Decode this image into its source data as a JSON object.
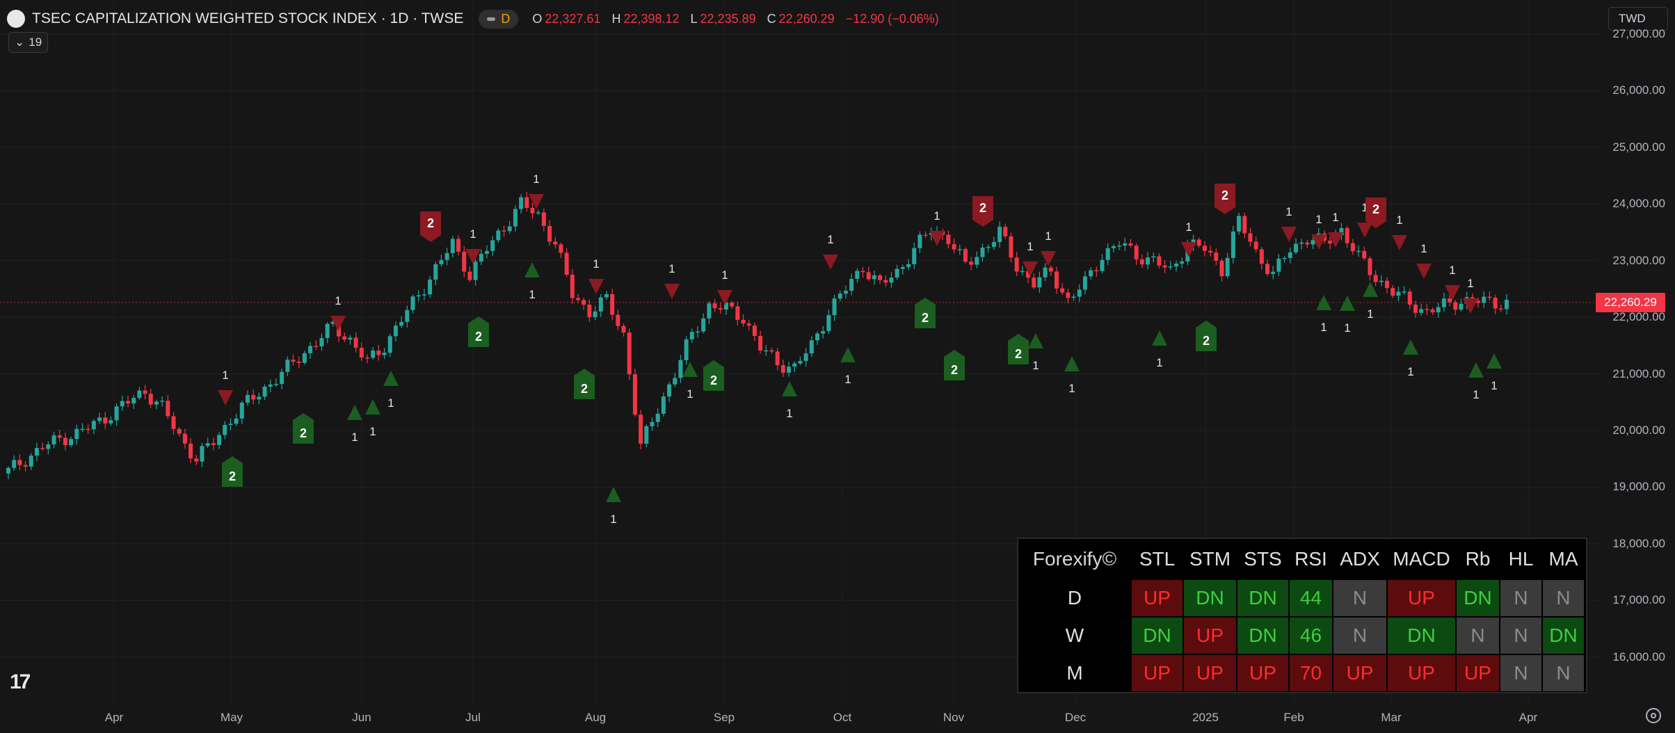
{
  "header": {
    "symbol_title": "TSEC CAPITALIZATION WEIGHTED STOCK INDEX · 1D · TWSE",
    "badge_letter": "D",
    "ohlc": {
      "o_label": "O",
      "o_value": "22,327.61",
      "h_label": "H",
      "h_value": "22,398.12",
      "l_label": "L",
      "l_value": "22,235.89",
      "c_label": "C",
      "c_value": "22,260.29",
      "change": "−12.90 (−0.06%)"
    },
    "indicator_count": "19",
    "currency": "TWD"
  },
  "colors": {
    "up": "#26a69a",
    "down": "#f23645",
    "background": "#161616",
    "buy_marker": "#1b5e20",
    "sell_marker": "#8b1a22"
  },
  "chart_data": {
    "type": "candlestick",
    "y_axis_labels": [
      "27,000.00",
      "26,000.00",
      "25,000.00",
      "24,000.00",
      "23,000.00",
      "22,000.00",
      "21,000.00",
      "20,000.00",
      "19,000.00",
      "18,000.00",
      "17,000.00",
      "16,000.00"
    ],
    "y_axis_values": [
      27000,
      26000,
      25000,
      24000,
      23000,
      22000,
      21000,
      20000,
      19000,
      18000,
      17000,
      16000
    ],
    "x_axis_labels": [
      "Apr",
      "May",
      "Jun",
      "Jul",
      "Aug",
      "Sep",
      "Oct",
      "Nov",
      "Dec",
      "2025",
      "Feb",
      "Mar",
      "Apr"
    ],
    "ylim": [
      15200,
      27600
    ],
    "last_price": 22260.29,
    "last_price_label": "22,260.29",
    "close_series": [
      19280,
      19500,
      19700,
      19850,
      19950,
      20100,
      20300,
      20500,
      20700,
      20400,
      19900,
      19500,
      19800,
      20200,
      20500,
      20750,
      21000,
      21300,
      21550,
      21850,
      21600,
      21200,
      21500,
      21950,
      22400,
      22850,
      23300,
      22750,
      23200,
      23600,
      24000,
      23800,
      23300,
      22400,
      22100,
      22300,
      21700,
      19700,
      20400,
      21000,
      21700,
      22200,
      22150,
      22000,
      21450,
      21200,
      21100,
      21500,
      22100,
      22500,
      22900,
      22550,
      22800,
      23200,
      23550,
      23400,
      22900,
      23200,
      23500,
      22900,
      22600,
      22800,
      22300,
      22600,
      23100,
      23300,
      23100,
      23000,
      22800,
      23300,
      23200,
      22850,
      23700,
      23150,
      22750,
      23200,
      23400,
      23300,
      23550,
      23050,
      22700,
      22450,
      22250,
      22100,
      22200,
      22300,
      22280,
      22260
    ],
    "signals": [
      {
        "type": "sell",
        "x": 324,
        "y": 571,
        "label": "1"
      },
      {
        "type": "buy",
        "x": 334,
        "y": 684,
        "label": "2",
        "boxed": true
      },
      {
        "type": "buy",
        "x": 436,
        "y": 622,
        "label": "2",
        "boxed": true
      },
      {
        "type": "sell",
        "x": 486,
        "y": 464,
        "label": "1"
      },
      {
        "type": "buy",
        "x": 510,
        "y": 594,
        "label": "1"
      },
      {
        "type": "buy",
        "x": 536,
        "y": 586,
        "label": "1"
      },
      {
        "type": "buy",
        "x": 562,
        "y": 545,
        "label": "1"
      },
      {
        "type": "sell",
        "x": 619,
        "y": 320,
        "label": "2",
        "boxed": true
      },
      {
        "type": "sell",
        "x": 680,
        "y": 368,
        "label": "1"
      },
      {
        "type": "buy",
        "x": 688,
        "y": 483,
        "label": "2",
        "boxed": true
      },
      {
        "type": "sell",
        "x": 771,
        "y": 289,
        "label": "1"
      },
      {
        "type": "buy",
        "x": 765,
        "y": 389,
        "label": "1"
      },
      {
        "type": "buy",
        "x": 840,
        "y": 558,
        "label": "2",
        "boxed": true
      },
      {
        "type": "sell",
        "x": 857,
        "y": 411,
        "label": "1"
      },
      {
        "type": "buy",
        "x": 882,
        "y": 712,
        "label": "1"
      },
      {
        "type": "sell",
        "x": 966,
        "y": 418,
        "label": "1"
      },
      {
        "type": "buy",
        "x": 992,
        "y": 532,
        "label": "1"
      },
      {
        "type": "buy",
        "x": 1026,
        "y": 546,
        "label": "2",
        "boxed": true
      },
      {
        "type": "sell",
        "x": 1042,
        "y": 427,
        "label": "1"
      },
      {
        "type": "buy",
        "x": 1135,
        "y": 560,
        "label": "1"
      },
      {
        "type": "sell",
        "x": 1194,
        "y": 376,
        "label": "1"
      },
      {
        "type": "buy",
        "x": 1219,
        "y": 511,
        "label": "1"
      },
      {
        "type": "buy",
        "x": 1330,
        "y": 456,
        "label": "2",
        "boxed": true
      },
      {
        "type": "sell",
        "x": 1347,
        "y": 342,
        "label": "1"
      },
      {
        "type": "buy",
        "x": 1372,
        "y": 531,
        "label": "2",
        "boxed": true
      },
      {
        "type": "sell",
        "x": 1413,
        "y": 298,
        "label": "2",
        "boxed": true
      },
      {
        "type": "buy",
        "x": 1464,
        "y": 508,
        "label": "2",
        "boxed": true
      },
      {
        "type": "buy",
        "x": 1489,
        "y": 491,
        "label": "1"
      },
      {
        "type": "sell",
        "x": 1481,
        "y": 386,
        "label": "1"
      },
      {
        "type": "sell",
        "x": 1507,
        "y": 371,
        "label": "1"
      },
      {
        "type": "buy",
        "x": 1541,
        "y": 524,
        "label": "1"
      },
      {
        "type": "buy",
        "x": 1667,
        "y": 487,
        "label": "1"
      },
      {
        "type": "sell",
        "x": 1709,
        "y": 358,
        "label": "1"
      },
      {
        "type": "buy",
        "x": 1734,
        "y": 489,
        "label": "2",
        "boxed": true
      },
      {
        "type": "sell",
        "x": 1761,
        "y": 280,
        "label": "2",
        "boxed": true
      },
      {
        "type": "sell",
        "x": 1853,
        "y": 336,
        "label": "1"
      },
      {
        "type": "buy",
        "x": 1903,
        "y": 436,
        "label": "1"
      },
      {
        "type": "sell",
        "x": 1896,
        "y": 347,
        "label": "1"
      },
      {
        "type": "sell",
        "x": 1920,
        "y": 344,
        "label": "1"
      },
      {
        "type": "buy",
        "x": 1937,
        "y": 437,
        "label": "1"
      },
      {
        "type": "sell",
        "x": 1962,
        "y": 330,
        "label": "1"
      },
      {
        "type": "sell",
        "x": 1978,
        "y": 300,
        "label": "2",
        "boxed": true
      },
      {
        "type": "buy",
        "x": 1970,
        "y": 417,
        "label": "1"
      },
      {
        "type": "sell",
        "x": 2012,
        "y": 348,
        "label": "1"
      },
      {
        "type": "sell",
        "x": 2047,
        "y": 389,
        "label": "1"
      },
      {
        "type": "buy",
        "x": 2028,
        "y": 500,
        "label": "1"
      },
      {
        "type": "sell",
        "x": 2088,
        "y": 420,
        "label": "1"
      },
      {
        "type": "sell",
        "x": 2114,
        "y": 439,
        "label": "1"
      },
      {
        "type": "buy",
        "x": 2122,
        "y": 533,
        "label": "1"
      },
      {
        "type": "buy",
        "x": 2148,
        "y": 520,
        "label": "1"
      }
    ]
  },
  "forexify_table": {
    "brand": "Forexify©",
    "columns": [
      "STL",
      "STM",
      "STS",
      "RSI",
      "ADX",
      "MACD",
      "Rb",
      "HL",
      "MA"
    ],
    "rows": [
      {
        "label": "D",
        "cells": [
          {
            "text": "UP",
            "state": "up"
          },
          {
            "text": "DN",
            "state": "dn"
          },
          {
            "text": "DN",
            "state": "dn"
          },
          {
            "text": "44",
            "state": "dn"
          },
          {
            "text": "N",
            "state": "n"
          },
          {
            "text": "UP",
            "state": "up"
          },
          {
            "text": "DN",
            "state": "dn"
          },
          {
            "text": "N",
            "state": "n"
          },
          {
            "text": "N",
            "state": "n"
          }
        ]
      },
      {
        "label": "W",
        "cells": [
          {
            "text": "DN",
            "state": "dn"
          },
          {
            "text": "UP",
            "state": "up"
          },
          {
            "text": "DN",
            "state": "dn"
          },
          {
            "text": "46",
            "state": "dn"
          },
          {
            "text": "N",
            "state": "n"
          },
          {
            "text": "DN",
            "state": "dn"
          },
          {
            "text": "N",
            "state": "n"
          },
          {
            "text": "N",
            "state": "n"
          },
          {
            "text": "DN",
            "state": "dn"
          }
        ]
      },
      {
        "label": "M",
        "cells": [
          {
            "text": "UP",
            "state": "up"
          },
          {
            "text": "UP",
            "state": "up"
          },
          {
            "text": "UP",
            "state": "up"
          },
          {
            "text": "70",
            "state": "up"
          },
          {
            "text": "UP",
            "state": "up"
          },
          {
            "text": "UP",
            "state": "up"
          },
          {
            "text": "UP",
            "state": "up"
          },
          {
            "text": "N",
            "state": "n"
          },
          {
            "text": "N",
            "state": "n"
          }
        ]
      }
    ]
  }
}
